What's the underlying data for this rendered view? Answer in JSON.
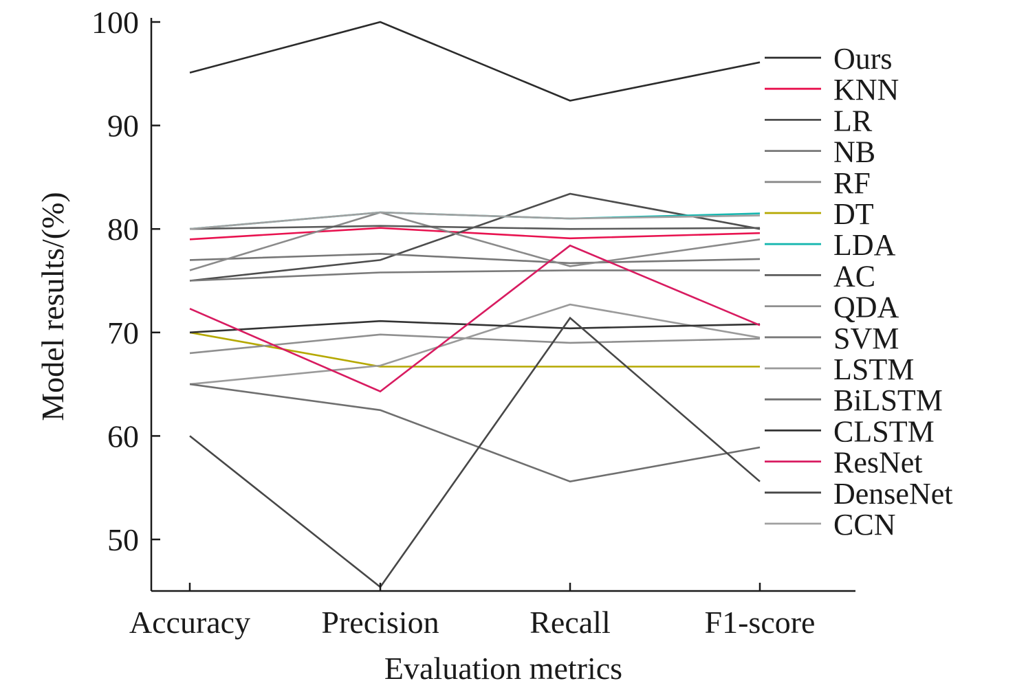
{
  "chart_data": {
    "type": "line",
    "title": "",
    "xlabel": "Evaluation metrics",
    "ylabel": "Model results/(%)",
    "categories": [
      "Accuracy",
      "Precision",
      "Recall",
      "F1-score"
    ],
    "ylim": [
      45,
      100
    ],
    "yticks": [
      50,
      60,
      70,
      80,
      90,
      100
    ],
    "grid": false,
    "legend_position": "right",
    "series": [
      {
        "name": "Ours",
        "color": "#2b2b2b",
        "values": [
          95.1,
          100.0,
          92.4,
          96.1
        ]
      },
      {
        "name": "KNN",
        "color": "#e8124f",
        "values": [
          79.0,
          80.1,
          79.1,
          79.6
        ]
      },
      {
        "name": "LR",
        "color": "#4d4d4d",
        "values": [
          75.0,
          77.0,
          83.4,
          80.0
        ]
      },
      {
        "name": "NB",
        "color": "#777777",
        "values": [
          77.0,
          77.6,
          76.7,
          77.1
        ]
      },
      {
        "name": "RF",
        "color": "#8a8a8a",
        "values": [
          76.0,
          81.6,
          76.4,
          79.0
        ]
      },
      {
        "name": "DT",
        "color": "#b5a800",
        "values": [
          70.0,
          66.7,
          66.7,
          66.7
        ]
      },
      {
        "name": "LDA",
        "color": "#18b7b0",
        "values": [
          80.0,
          81.6,
          81.0,
          81.5
        ]
      },
      {
        "name": "AC",
        "color": "#5a5a5a",
        "values": [
          80.0,
          80.3,
          80.0,
          80.1
        ]
      },
      {
        "name": "QDA",
        "color": "#8f8f8f",
        "values": [
          68.0,
          69.8,
          69.0,
          69.4
        ]
      },
      {
        "name": "SVM",
        "color": "#7a7a7a",
        "values": [
          75.0,
          75.8,
          76.0,
          76.0
        ]
      },
      {
        "name": "LSTM",
        "color": "#9a9a9a",
        "values": [
          65.0,
          66.8,
          72.7,
          69.5
        ]
      },
      {
        "name": "BiLSTM",
        "color": "#6f6f6f",
        "values": [
          65.0,
          62.5,
          55.6,
          58.9
        ]
      },
      {
        "name": "CLSTM",
        "color": "#333333",
        "values": [
          70.0,
          71.1,
          70.4,
          70.8
        ]
      },
      {
        "name": "ResNet",
        "color": "#d81b60",
        "values": [
          72.3,
          64.3,
          78.4,
          70.7
        ]
      },
      {
        "name": "DenseNet",
        "color": "#474747",
        "values": [
          60.0,
          45.4,
          71.4,
          55.6
        ]
      },
      {
        "name": "CCN",
        "color": "#a0a0a0",
        "values": [
          80.0,
          81.6,
          81.0,
          81.3
        ]
      }
    ]
  }
}
